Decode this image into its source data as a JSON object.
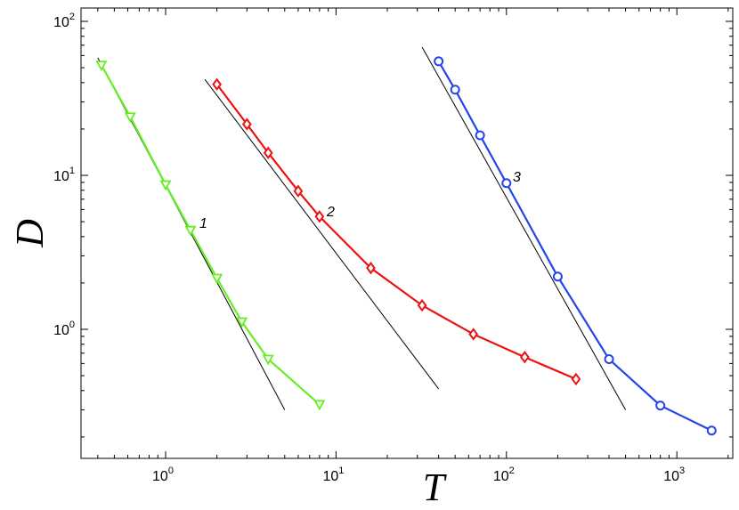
{
  "chart_data": {
    "type": "line",
    "title": "",
    "xlabel": "T",
    "ylabel": "D",
    "xscale": "log",
    "yscale": "log",
    "xlim": [
      0.33,
      2000
    ],
    "ylim": [
      0.2,
      100
    ],
    "grid": false,
    "legend": "none",
    "xticks": [
      {
        "base": "10",
        "exp": "0",
        "value": 1
      },
      {
        "base": "10",
        "exp": "1",
        "value": 10
      },
      {
        "base": "10",
        "exp": "2",
        "value": 100
      },
      {
        "base": "10",
        "exp": "3",
        "value": 1000
      }
    ],
    "yticks": [
      {
        "base": "10",
        "exp": "0",
        "value": 1
      },
      {
        "base": "10",
        "exp": "1",
        "value": 10
      },
      {
        "base": "10",
        "exp": "2",
        "value": 100
      }
    ],
    "series": [
      {
        "label": "1",
        "color": "#66ee22",
        "marker": "triangle-down",
        "x": [
          0.42,
          0.62,
          1.0,
          1.4,
          2.0,
          2.8,
          4.0,
          8.0
        ],
        "y": [
          52,
          24,
          8.7,
          4.4,
          2.15,
          1.12,
          0.64,
          0.325
        ]
      },
      {
        "label": "2",
        "color": "#ee1111",
        "marker": "diamond",
        "x": [
          2,
          3,
          4,
          6,
          8,
          16,
          32,
          64,
          128,
          256
        ],
        "y": [
          39,
          21.5,
          14,
          7.9,
          5.4,
          2.5,
          1.43,
          0.93,
          0.66,
          0.475
        ]
      },
      {
        "label": "3",
        "color": "#2244ee",
        "marker": "circle",
        "x": [
          40,
          50,
          70,
          100,
          200,
          400,
          800,
          1600
        ],
        "y": [
          55,
          36,
          18.2,
          8.9,
          2.2,
          0.64,
          0.32,
          0.22
        ]
      }
    ],
    "reference_lines": [
      {
        "x": [
          0.4,
          5
        ],
        "y": [
          58,
          0.3
        ]
      },
      {
        "x": [
          1.7,
          40
        ],
        "y": [
          42,
          0.41
        ]
      },
      {
        "x": [
          32,
          500
        ],
        "y": [
          68,
          0.3
        ]
      }
    ]
  }
}
